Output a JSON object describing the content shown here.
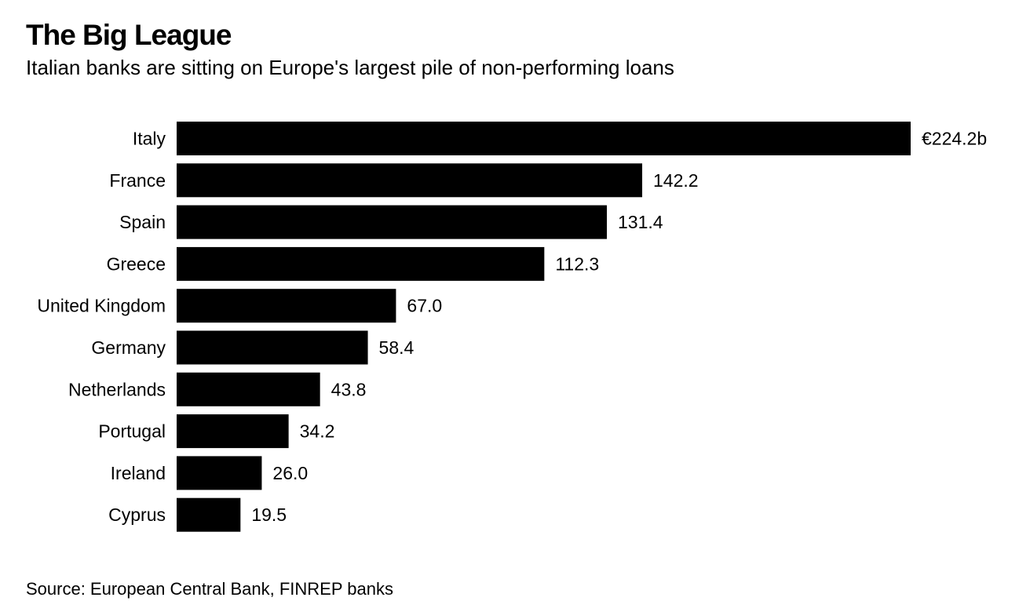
{
  "chart_data": {
    "type": "bar",
    "orientation": "horizontal",
    "title": "The Big League",
    "subtitle": "Italian banks are sitting on Europe's largest pile of non-performing loans",
    "source": "Source: European Central Bank, FINREP banks",
    "categories": [
      "Italy",
      "France",
      "Spain",
      "Greece",
      "United Kingdom",
      "Germany",
      "Netherlands",
      "Portugal",
      "Ireland",
      "Cyprus"
    ],
    "values": [
      224.2,
      142.2,
      131.4,
      112.3,
      67.0,
      58.4,
      43.8,
      34.2,
      26.0,
      19.5
    ],
    "value_labels": [
      "€224.2b",
      "142.2",
      "131.4",
      "112.3",
      "67.0",
      "58.4",
      "43.8",
      "34.2",
      "26.0",
      "19.5"
    ],
    "xlim": [
      0,
      224.2
    ],
    "grid": false,
    "bar_color": "#000000"
  }
}
